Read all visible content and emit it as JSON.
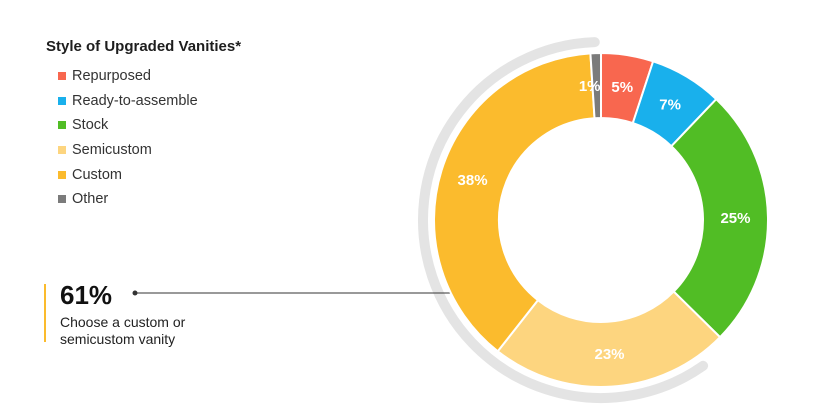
{
  "chart_data": {
    "type": "pie",
    "title": "Style of Upgraded Vanities*",
    "categories": [
      "Repurposed",
      "Ready-to-assemble",
      "Stock",
      "Semicustom",
      "Custom",
      "Other"
    ],
    "values": [
      5,
      7,
      25,
      23,
      38,
      1
    ],
    "labels": [
      "5%",
      "7%",
      "25%",
      "23%",
      "38%",
      "1%"
    ],
    "colors": [
      "#f8674f",
      "#19b0ec",
      "#51bd25",
      "#fdd57f",
      "#fbbb2d",
      "#7b7b7b"
    ],
    "legend_position": "top-left",
    "donut": true
  },
  "callout": {
    "value": "61%",
    "text": "Choose a custom or semicustom vanity",
    "accent_color": "#fbbb2d"
  }
}
